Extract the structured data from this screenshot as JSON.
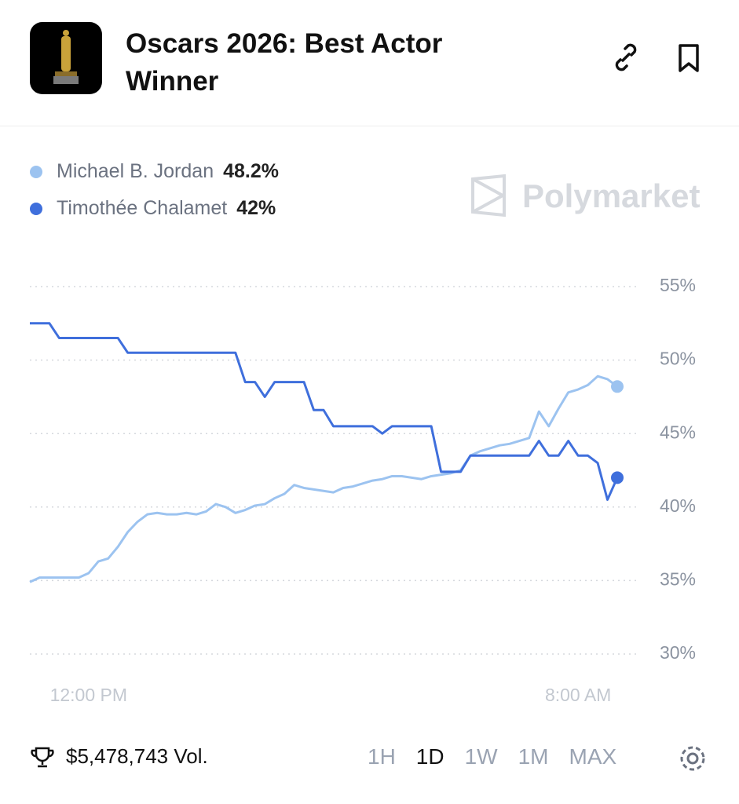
{
  "header": {
    "title": "Oscars 2026: Best Actor Winner"
  },
  "watermark": "Polymarket",
  "chart_data": {
    "type": "line",
    "categories": [
      null,
      null,
      null,
      null,
      null,
      null,
      "12:00 PM",
      null,
      null,
      null,
      null,
      null,
      null,
      null,
      null,
      null,
      null,
      null,
      null,
      null,
      null,
      null,
      null,
      null,
      null,
      null,
      null,
      null,
      null,
      null,
      null,
      null,
      null,
      null,
      null,
      null,
      null,
      null,
      null,
      null,
      null,
      null,
      null,
      null,
      null,
      null,
      null,
      null,
      null,
      null,
      null,
      null,
      null,
      null,
      null,
      null,
      "8:00 AM",
      null,
      null,
      null,
      null
    ],
    "series": [
      {
        "name": "Michael B. Jordan",
        "last_label": "48.2%",
        "color": "#9cc3f0",
        "values": [
          34.9,
          35.2,
          35.2,
          35.2,
          35.2,
          35.2,
          35.5,
          36.3,
          36.5,
          37.3,
          38.3,
          39,
          39.5,
          39.6,
          39.5,
          39.5,
          39.6,
          39.5,
          39.7,
          40.2,
          40,
          39.6,
          39.8,
          40.1,
          40.2,
          40.6,
          40.9,
          41.5,
          41.3,
          41.2,
          41.1,
          41,
          41.3,
          41.4,
          41.6,
          41.8,
          41.9,
          42.1,
          42.1,
          42,
          41.9,
          42.1,
          42.2,
          42.3,
          42.5,
          43.5,
          43.8,
          44,
          44.2,
          44.3,
          44.5,
          44.7,
          46.5,
          45.5,
          46.7,
          47.8,
          48,
          48.3,
          48.9,
          48.7,
          48.2
        ]
      },
      {
        "name": "Timothée Chalamet",
        "last_label": "42%",
        "color": "#3f6fdc",
        "values": [
          52.5,
          52.5,
          52.5,
          51.5,
          51.5,
          51.5,
          51.5,
          51.5,
          51.5,
          51.5,
          50.5,
          50.5,
          50.5,
          50.5,
          50.5,
          50.5,
          50.5,
          50.5,
          50.5,
          50.5,
          50.5,
          50.5,
          48.5,
          48.5,
          47.5,
          48.5,
          48.5,
          48.5,
          48.5,
          46.6,
          46.6,
          45.5,
          45.5,
          45.5,
          45.5,
          45.5,
          45,
          45.5,
          45.5,
          45.5,
          45.5,
          45.5,
          42.4,
          42.4,
          42.4,
          43.5,
          43.5,
          43.5,
          43.5,
          43.5,
          43.5,
          43.5,
          44.5,
          43.5,
          43.5,
          44.5,
          43.5,
          43.5,
          43,
          40.5,
          42
        ]
      }
    ],
    "ylim": [
      30,
      55
    ],
    "yticks": [
      {
        "value": 30,
        "label": "30%"
      },
      {
        "value": 35,
        "label": "35%"
      },
      {
        "value": 40,
        "label": "40%"
      },
      {
        "value": 45,
        "label": "45%"
      },
      {
        "value": 50,
        "label": "50%"
      },
      {
        "value": 55,
        "label": "55%"
      }
    ],
    "grid": true
  },
  "footer": {
    "volume": "$5,478,743 Vol.",
    "ranges": [
      "1H",
      "1D",
      "1W",
      "1M",
      "MAX"
    ],
    "active_range": "1D"
  }
}
